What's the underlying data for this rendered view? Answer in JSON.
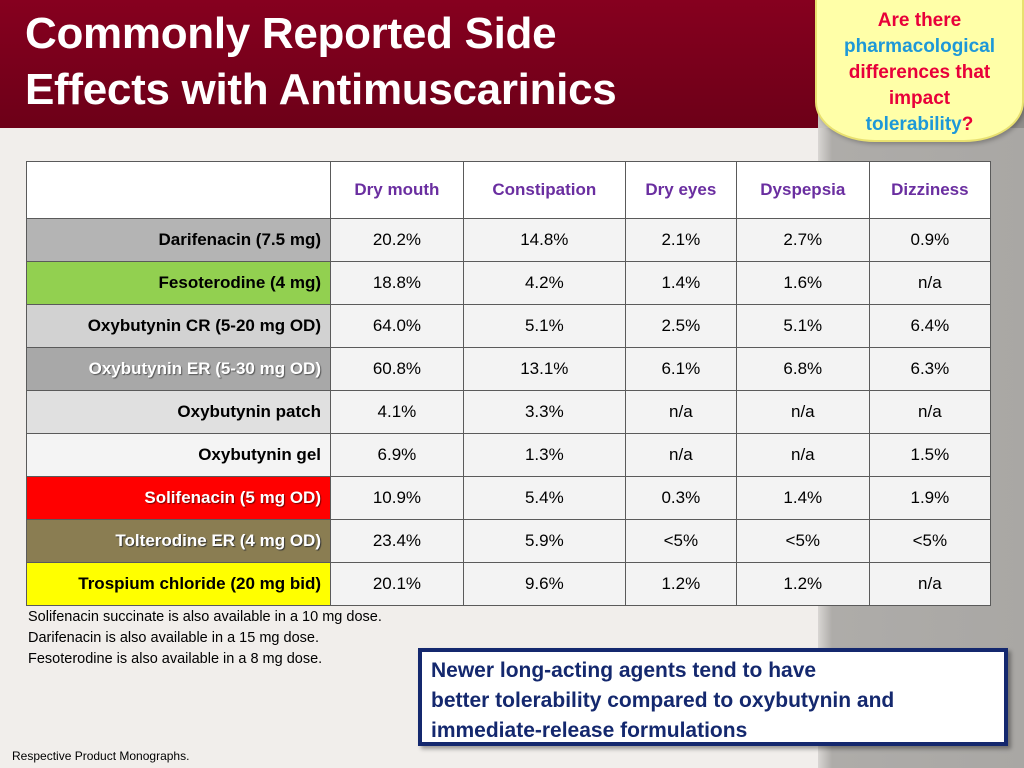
{
  "title": {
    "line1": "Commonly Reported Side",
    "line2": "Effects with Antimuscarinics"
  },
  "callout": {
    "line1": "Are there",
    "line2": "pharmacological",
    "line3": "differences that",
    "line4": "impact",
    "line5a": "tolerability",
    "line5b": "?"
  },
  "table": {
    "headers": [
      "Dry mouth",
      "Constipation",
      "Dry eyes",
      "Dyspepsia",
      "Dizziness"
    ],
    "rows": [
      {
        "drug": "Darifenacin (7.5 mg)",
        "values": [
          "20.2%",
          "14.8%",
          "2.1%",
          "2.7%",
          "0.9%"
        ],
        "color": "#b4b4b4"
      },
      {
        "drug": "Fesoterodine (4 mg)",
        "values": [
          "18.8%",
          "4.2%",
          "1.4%",
          "1.6%",
          "n/a"
        ],
        "color": "#92d050"
      },
      {
        "drug": "Oxybutynin CR (5-20 mg OD)",
        "values": [
          "64.0%",
          "5.1%",
          "2.5%",
          "5.1%",
          "6.4%"
        ],
        "color": "#d2d2d2"
      },
      {
        "drug": "Oxybutynin ER (5-30 mg OD)",
        "values": [
          "60.8%",
          "13.1%",
          "6.1%",
          "6.8%",
          "6.3%"
        ],
        "color": "#a8a8a8"
      },
      {
        "drug": "Oxybutynin patch",
        "values": [
          "4.1%",
          "3.3%",
          "n/a",
          "n/a",
          "n/a"
        ],
        "color": "#e0e0e0"
      },
      {
        "drug": "Oxybutynin gel",
        "values": [
          "6.9%",
          "1.3%",
          "n/a",
          "n/a",
          "1.5%"
        ],
        "color": "#f4f4f4"
      },
      {
        "drug": "Solifenacin (5 mg OD)",
        "values": [
          "10.9%",
          "5.4%",
          "0.3%",
          "1.4%",
          "1.9%"
        ],
        "color": "#ff0000"
      },
      {
        "drug": "Tolterodine ER (4 mg OD)",
        "values": [
          "23.4%",
          "5.9%",
          "<5%",
          "<5%",
          "<5%"
        ],
        "color": "#8a7d52"
      },
      {
        "drug": "Trospium chloride (20 mg bid)",
        "values": [
          "20.1%",
          "9.6%",
          "1.2%",
          "1.2%",
          "n/a"
        ],
        "color": "#ffff00"
      }
    ]
  },
  "notes": [
    "Solifenacin succinate is also available in a 10 mg dose.",
    "Darifenacin is also available in a 15 mg dose.",
    "Fesoterodine is also available in a 8 mg dose."
  ],
  "conclusion": {
    "line1": "Newer long-acting agents tend to have",
    "line2": "better tolerability compared to oxybutynin and",
    "line3": "immediate-release formulations"
  },
  "reference": "Respective Product Monographs.",
  "colors": {
    "header_bg": "#86001f",
    "header_text_purple": "#6a2ea0",
    "conclusion_navy": "#14286e",
    "callout_bg": "#ffffa8"
  }
}
